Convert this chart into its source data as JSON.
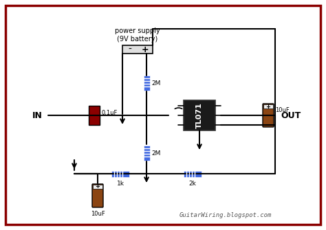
{
  "bg_color": "#ffffff",
  "border_color": "#8b0000",
  "text_color": "#000000",
  "wire_color": "#000000",
  "resistor_color": "#4169e1",
  "cap_red_color": "#8b0000",
  "cap_brown_color": "#8b4513",
  "ic_color": "#1a1a1a",
  "arrow_color": "#000000",
  "battery_color": "#cccccc",
  "watermark": "GuitarWiring.blogspot.com",
  "title_label": "power supply\n(9V battery)",
  "in_label": "IN",
  "out_label": "OUT",
  "r1_label": "2M",
  "r2_label": "2M",
  "r3_label": "1k",
  "r4_label": "2k",
  "c1_label": "0,1uF",
  "c2_label": "10uF",
  "c3_label": "10uF",
  "ic_label": "TL071"
}
